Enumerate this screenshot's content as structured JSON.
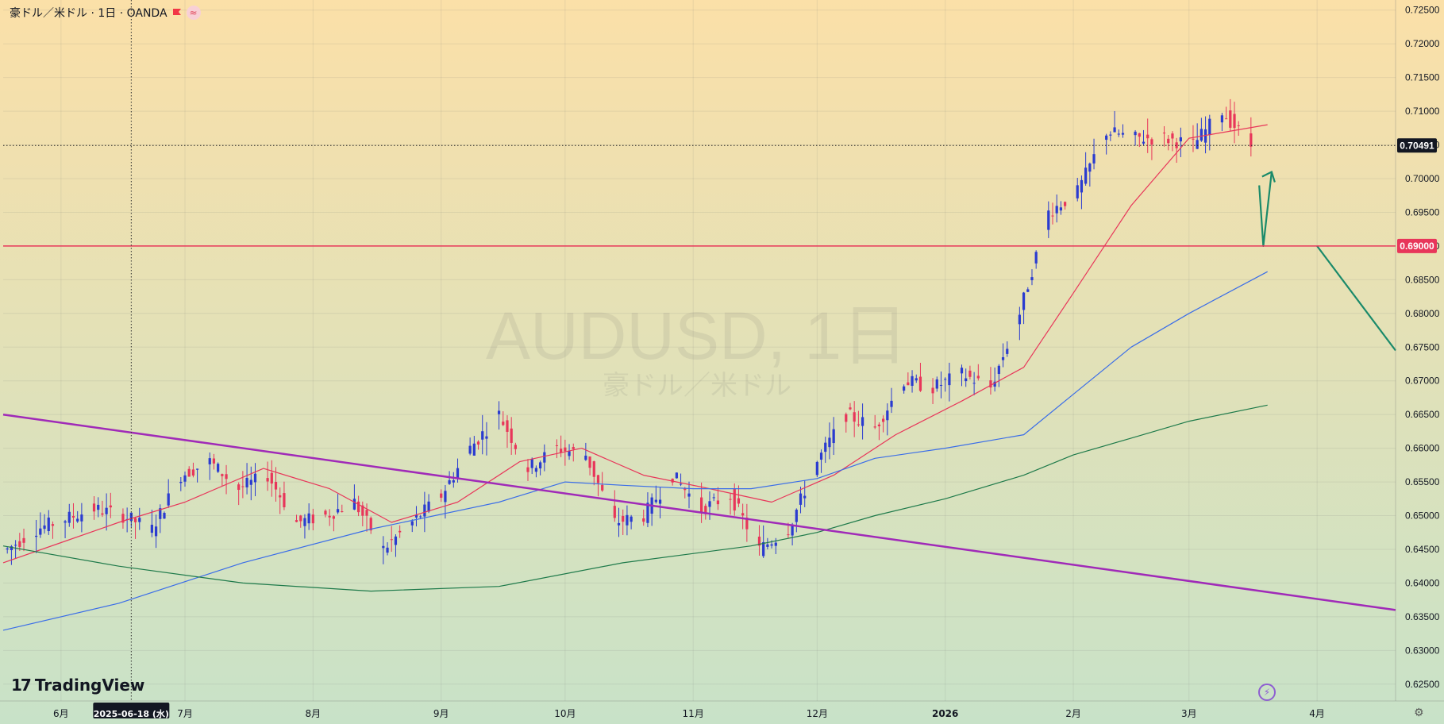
{
  "header": {
    "symbol_desc": "豪ドル／米ドル · 1日 · OANDA",
    "flag_color": "#f23645",
    "wave_icon": "≈"
  },
  "watermark": {
    "title": "AUDUSD, 1日",
    "subtitle": "豪ドル／米ドル"
  },
  "branding": {
    "logo_text": "TradingView",
    "logo_mark": "17"
  },
  "crosshair_date_label": "2025-06-18 (水)",
  "price_scale": {
    "labels": [
      "0.72500",
      "0.72000",
      "0.71500",
      "0.71000",
      "0.70500",
      "0.70000",
      "0.69500",
      "0.69000",
      "0.68500",
      "0.68000",
      "0.67500",
      "0.67000",
      "0.66500",
      "0.66000",
      "0.65500",
      "0.65000",
      "0.64500",
      "0.64000",
      "0.63500",
      "0.63000",
      "0.62500"
    ],
    "current_price_label": "0.70491",
    "level_label": "0.69000"
  },
  "time_axis": {
    "labels": [
      "6月",
      "7月",
      "8月",
      "9月",
      "10月",
      "11月",
      "12月",
      "2026",
      "2月",
      "3月",
      "4月"
    ]
  },
  "colors": {
    "up": "#2a3bd0",
    "down": "#e8365a",
    "sma_short": "#e8365a",
    "sma_mid": "#3a6de8",
    "sma_long": "#1e7a4a",
    "trendline": "#a02ab8",
    "level_line": "#e8365a",
    "arrow": "#1a8a6a",
    "bg_top": "#fbe0a8",
    "bg_bottom": "#c8e2c8"
  },
  "chart_data": {
    "type": "candlestick",
    "title": "AUDUSD, 1日",
    "subtitle": "豪ドル／米ドル",
    "ylim": [
      0.6225,
      0.7265
    ],
    "xlim": [
      "2025-05-18",
      "2026-04-20"
    ],
    "x_ticks": [
      "2025-06-01",
      "2025-07-01",
      "2025-08-01",
      "2025-09-01",
      "2025-10-01",
      "2025-11-01",
      "2025-12-01",
      "2026-01-01",
      "2026-02-01",
      "2026-03-01",
      "2026-04-01"
    ],
    "current_price": 0.70491,
    "horizontal_level": 0.69,
    "candle_anchors": [
      [
        "2025-05-19",
        0.645
      ],
      [
        "2025-05-26",
        0.648
      ],
      [
        "2025-06-02",
        0.6495
      ],
      [
        "2025-06-09",
        0.651
      ],
      [
        "2025-06-16",
        0.65
      ],
      [
        "2025-06-23",
        0.648
      ],
      [
        "2025-06-30",
        0.656
      ],
      [
        "2025-07-07",
        0.658
      ],
      [
        "2025-07-14",
        0.654
      ],
      [
        "2025-07-21",
        0.656
      ],
      [
        "2025-07-28",
        0.649
      ],
      [
        "2025-08-04",
        0.65
      ],
      [
        "2025-08-11",
        0.652
      ],
      [
        "2025-08-18",
        0.645
      ],
      [
        "2025-08-25",
        0.649
      ],
      [
        "2025-09-01",
        0.653
      ],
      [
        "2025-09-08",
        0.66
      ],
      [
        "2025-09-15",
        0.665
      ],
      [
        "2025-09-22",
        0.657
      ],
      [
        "2025-09-29",
        0.66
      ],
      [
        "2025-10-06",
        0.659
      ],
      [
        "2025-10-13",
        0.649
      ],
      [
        "2025-10-20",
        0.65
      ],
      [
        "2025-10-27",
        0.656
      ],
      [
        "2025-11-03",
        0.651
      ],
      [
        "2025-11-10",
        0.653
      ],
      [
        "2025-11-17",
        0.645
      ],
      [
        "2025-11-24",
        0.648
      ],
      [
        "2025-12-01",
        0.658
      ],
      [
        "2025-12-08",
        0.665
      ],
      [
        "2025-12-15",
        0.663
      ],
      [
        "2025-12-22",
        0.67
      ],
      [
        "2025-12-29",
        0.669
      ],
      [
        "2026-01-05",
        0.671
      ],
      [
        "2026-01-12",
        0.669
      ],
      [
        "2026-01-19",
        0.68
      ],
      [
        "2026-01-26",
        0.695
      ],
      [
        "2026-02-02",
        0.698
      ],
      [
        "2026-02-09",
        0.707
      ],
      [
        "2026-02-16",
        0.706
      ],
      [
        "2026-02-23",
        0.706
      ],
      [
        "2026-03-02",
        0.705
      ],
      [
        "2026-03-09",
        0.71
      ],
      [
        "2026-03-16",
        0.7049
      ]
    ],
    "series": [
      {
        "type": "sma_short",
        "points": [
          [
            "2025-05-18",
            0.643
          ],
          [
            "2025-06-01",
            0.646
          ],
          [
            "2025-06-15",
            0.649
          ],
          [
            "2025-07-01",
            0.652
          ],
          [
            "2025-07-20",
            0.657
          ],
          [
            "2025-08-05",
            0.654
          ],
          [
            "2025-08-20",
            0.649
          ],
          [
            "2025-09-05",
            0.652
          ],
          [
            "2025-09-20",
            0.658
          ],
          [
            "2025-10-05",
            0.66
          ],
          [
            "2025-10-20",
            0.656
          ],
          [
            "2025-11-05",
            0.654
          ],
          [
            "2025-11-20",
            0.652
          ],
          [
            "2025-12-05",
            0.656
          ],
          [
            "2025-12-20",
            0.662
          ],
          [
            "2026-01-05",
            0.667
          ],
          [
            "2026-01-20",
            0.672
          ],
          [
            "2026-02-01",
            0.683
          ],
          [
            "2026-02-15",
            0.696
          ],
          [
            "2026-03-01",
            0.706
          ],
          [
            "2026-03-20",
            0.708
          ]
        ]
      },
      {
        "type": "sma_mid",
        "points": [
          [
            "2025-05-18",
            0.633
          ],
          [
            "2025-06-15",
            0.637
          ],
          [
            "2025-07-15",
            0.643
          ],
          [
            "2025-08-15",
            0.648
          ],
          [
            "2025-09-15",
            0.652
          ],
          [
            "2025-10-01",
            0.655
          ],
          [
            "2025-10-15",
            0.6545
          ],
          [
            "2025-11-01",
            0.654
          ],
          [
            "2025-11-15",
            0.654
          ],
          [
            "2025-12-01",
            0.6555
          ],
          [
            "2025-12-15",
            0.6585
          ],
          [
            "2026-01-01",
            0.66
          ],
          [
            "2026-01-20",
            0.662
          ],
          [
            "2026-02-01",
            0.668
          ],
          [
            "2026-02-15",
            0.675
          ],
          [
            "2026-03-01",
            0.68
          ],
          [
            "2026-03-20",
            0.6862
          ]
        ]
      },
      {
        "type": "sma_long",
        "points": [
          [
            "2025-05-18",
            0.6455
          ],
          [
            "2025-06-15",
            0.6425
          ],
          [
            "2025-07-15",
            0.64
          ],
          [
            "2025-08-15",
            0.6388
          ],
          [
            "2025-09-15",
            0.6395
          ],
          [
            "2025-10-15",
            0.643
          ],
          [
            "2025-11-15",
            0.6455
          ],
          [
            "2025-12-01",
            0.6475
          ],
          [
            "2025-12-15",
            0.65
          ],
          [
            "2026-01-01",
            0.6525
          ],
          [
            "2026-01-20",
            0.656
          ],
          [
            "2026-02-01",
            0.659
          ],
          [
            "2026-02-15",
            0.6615
          ],
          [
            "2026-03-01",
            0.664
          ],
          [
            "2026-03-20",
            0.6664
          ]
        ]
      },
      {
        "type": "trendline",
        "points": [
          [
            "2025-05-18",
            0.665
          ],
          [
            "2026-04-20",
            0.636
          ]
        ]
      },
      {
        "type": "arrow_down_up",
        "points": [
          [
            "2026-03-18",
            0.699
          ],
          [
            "2026-03-19",
            0.69
          ],
          [
            "2026-03-21",
            0.701
          ]
        ]
      },
      {
        "type": "arrow_down",
        "points": [
          [
            "2026-04-01",
            0.69
          ],
          [
            "2026-04-20",
            0.6745
          ]
        ]
      }
    ]
  }
}
